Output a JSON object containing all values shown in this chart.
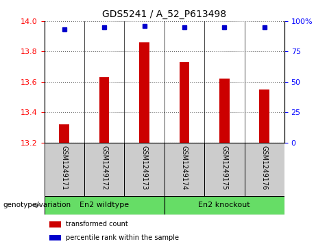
{
  "title": "GDS5241 / A_52_P613498",
  "samples": [
    "GSM1249171",
    "GSM1249172",
    "GSM1249173",
    "GSM1249174",
    "GSM1249175",
    "GSM1249176"
  ],
  "bar_values": [
    13.32,
    13.63,
    13.86,
    13.73,
    13.62,
    13.55
  ],
  "percentile_values": [
    93,
    95,
    96,
    95,
    95,
    95
  ],
  "ylim_left": [
    13.2,
    14.0
  ],
  "ylim_right": [
    0,
    100
  ],
  "yticks_left": [
    13.2,
    13.4,
    13.6,
    13.8,
    14.0
  ],
  "yticks_right": [
    0,
    25,
    50,
    75,
    100
  ],
  "ytick_labels_right": [
    "0",
    "25",
    "50",
    "75",
    "100%"
  ],
  "bar_color": "#cc0000",
  "percentile_color": "#0000cc",
  "groups": [
    {
      "label": "En2 wildtype",
      "indices": [
        0,
        1,
        2
      ],
      "color": "#66dd66"
    },
    {
      "label": "En2 knockout",
      "indices": [
        3,
        4,
        5
      ],
      "color": "#66dd66"
    }
  ],
  "group_label_prefix": "genotype/variation",
  "legend_items": [
    {
      "label": "transformed count",
      "color": "#cc0000"
    },
    {
      "label": "percentile rank within the sample",
      "color": "#0000cc"
    }
  ],
  "cell_bg_color": "#cccccc",
  "title_fontsize": 10,
  "tick_fontsize": 8
}
